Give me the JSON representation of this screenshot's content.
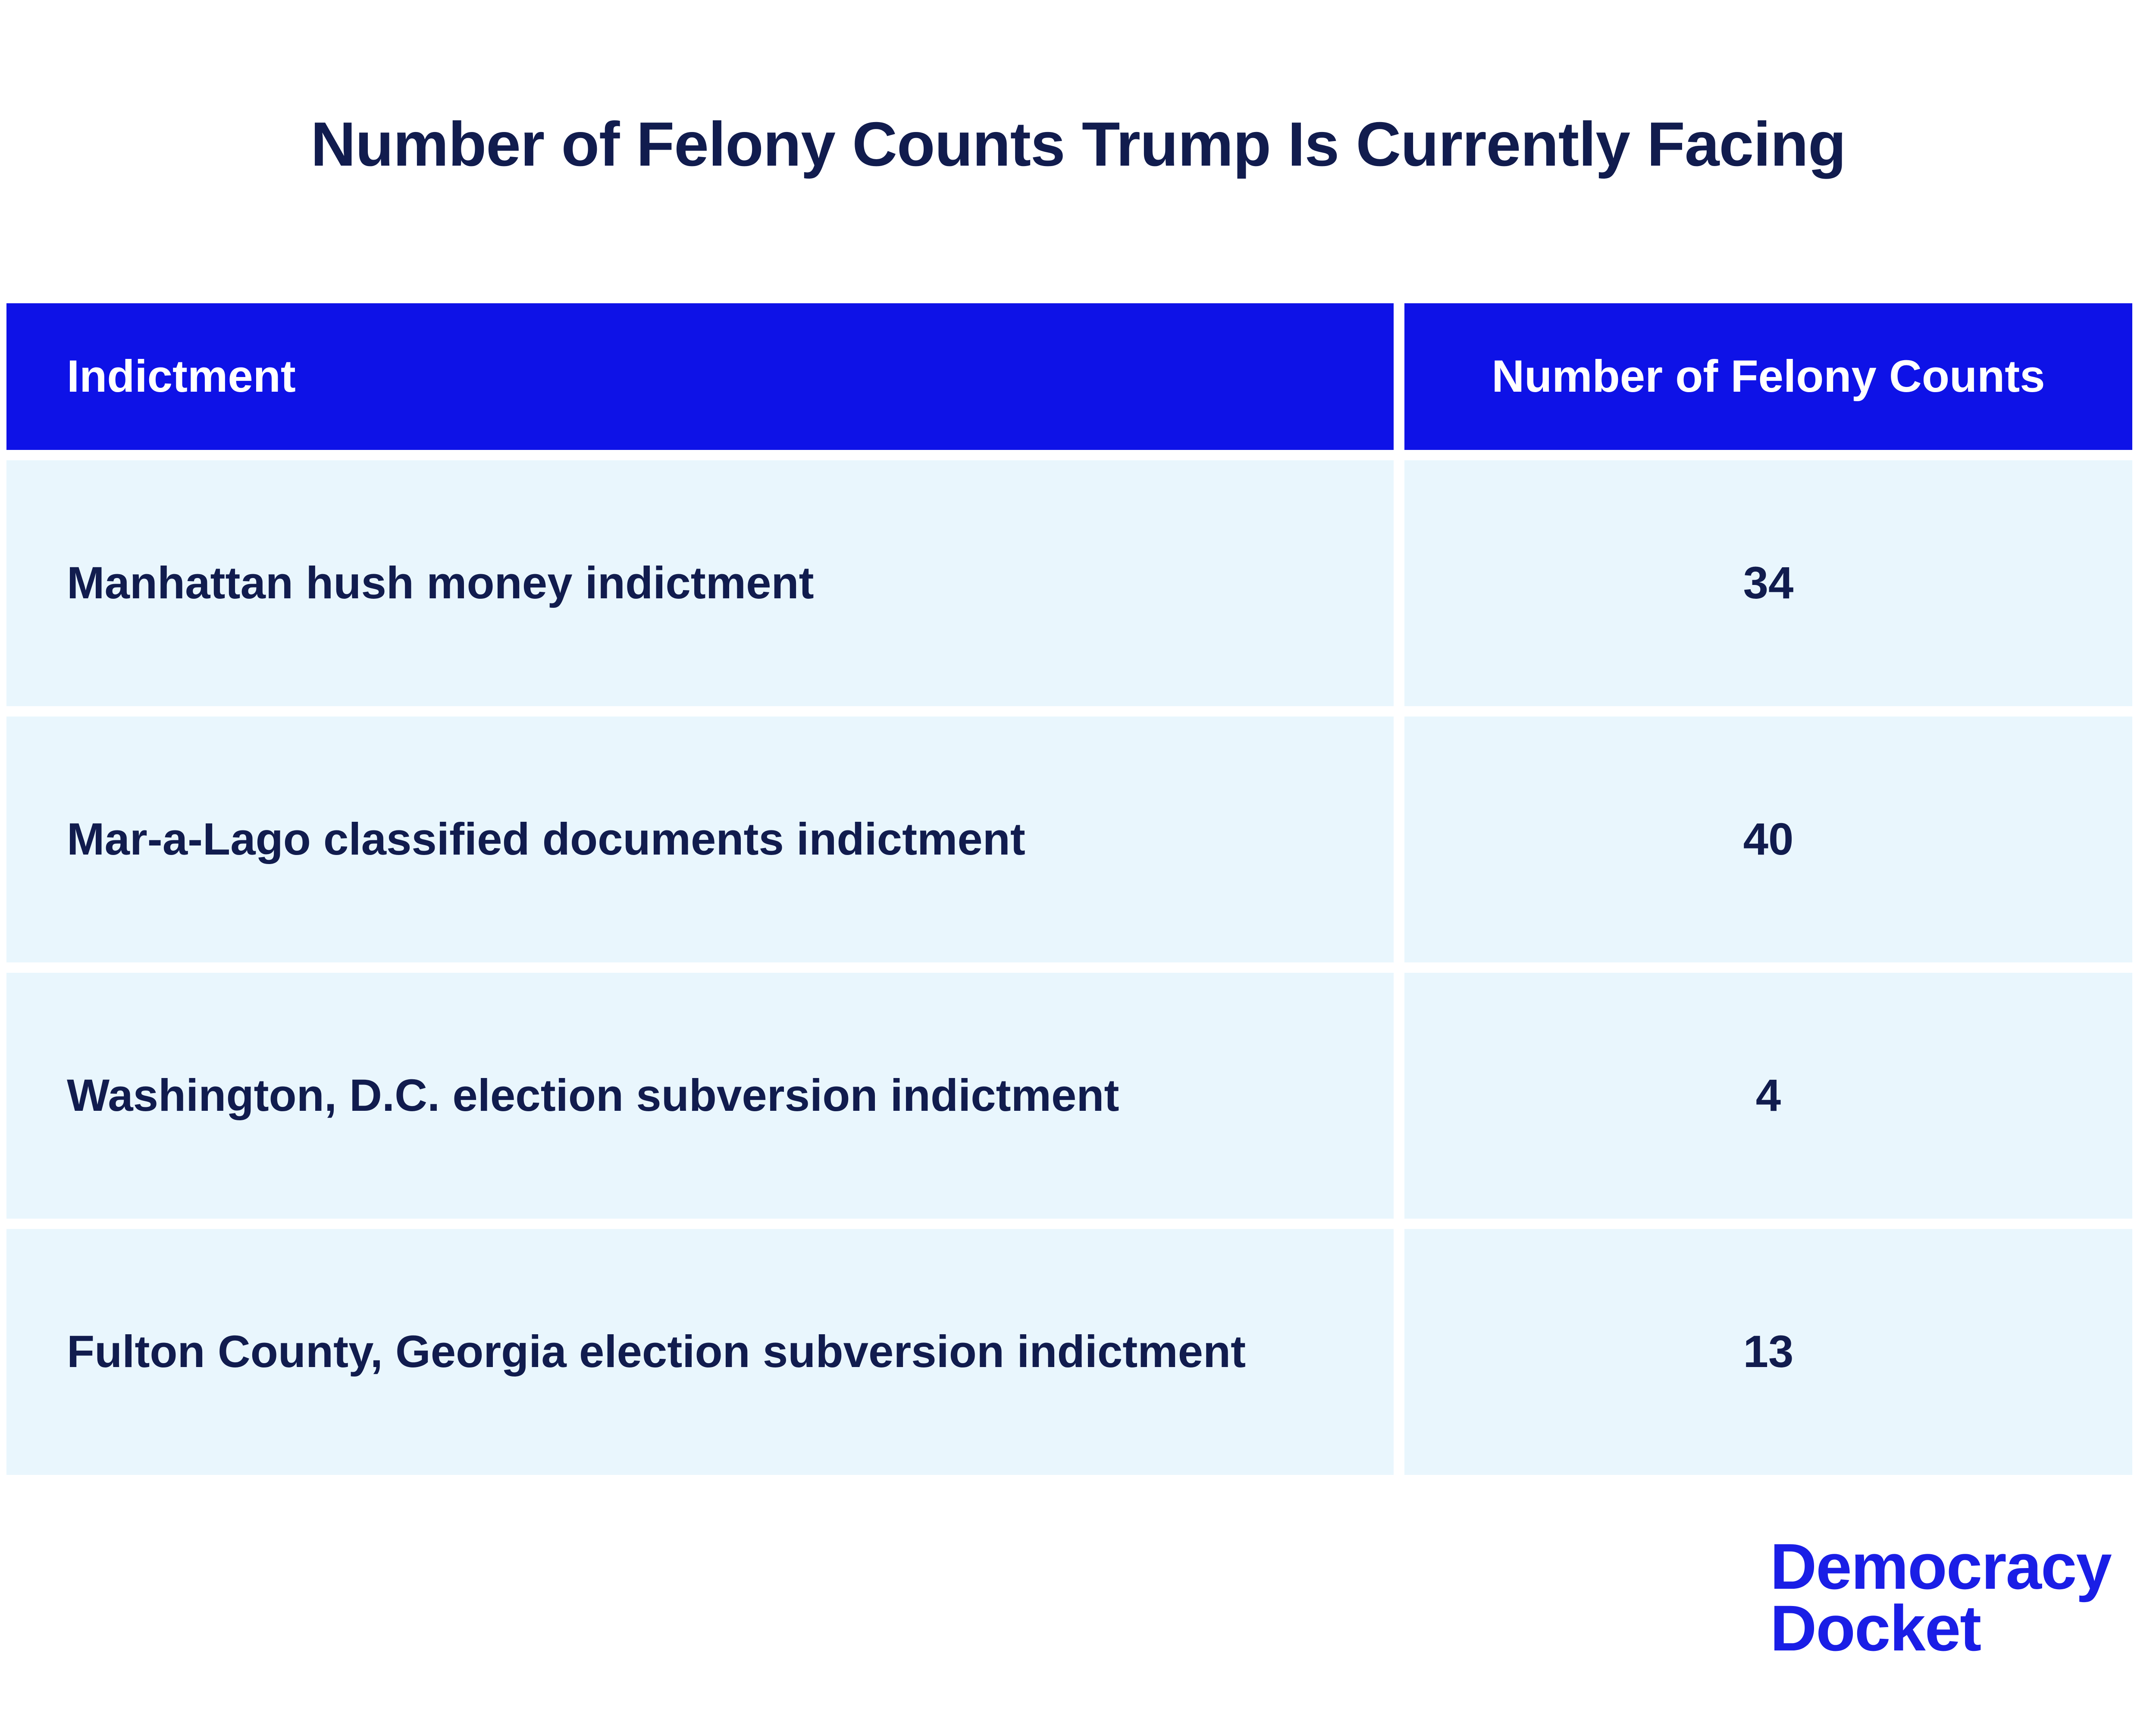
{
  "title": "Number of Felony Counts Trump Is Currently Facing",
  "table": {
    "headers": [
      "Indictment",
      "Number of Felony Counts"
    ],
    "rows": [
      {
        "label": "Manhattan hush money indictment",
        "count": "34"
      },
      {
        "label": "Mar-a-Lago classified documents indictment",
        "count": "40"
      },
      {
        "label": "Washington, D.C. election subversion indictment",
        "count": "4"
      },
      {
        "label": "Fulton County, Georgia election subversion indictment",
        "count": "13"
      }
    ]
  },
  "logo": {
    "line1": "Democracy",
    "line2": "Docket"
  },
  "colors": {
    "header_bg": "#0e12e7",
    "header_text": "#ffffff",
    "row_bg": "#e9f6fd",
    "text_navy": "#111c4e",
    "logo_blue": "#1a1ee6",
    "page_bg": "#ffffff"
  },
  "chart_data": {
    "type": "table",
    "title": "Number of Felony Counts Trump Is Currently Facing",
    "columns": [
      "Indictment",
      "Number of Felony Counts"
    ],
    "categories": [
      "Manhattan hush money indictment",
      "Mar-a-Lago classified documents indictment",
      "Washington, D.C. election subversion indictment",
      "Fulton County, Georgia election subversion indictment"
    ],
    "values": [
      34,
      40,
      4,
      13
    ],
    "legend": "none",
    "grid": false
  }
}
